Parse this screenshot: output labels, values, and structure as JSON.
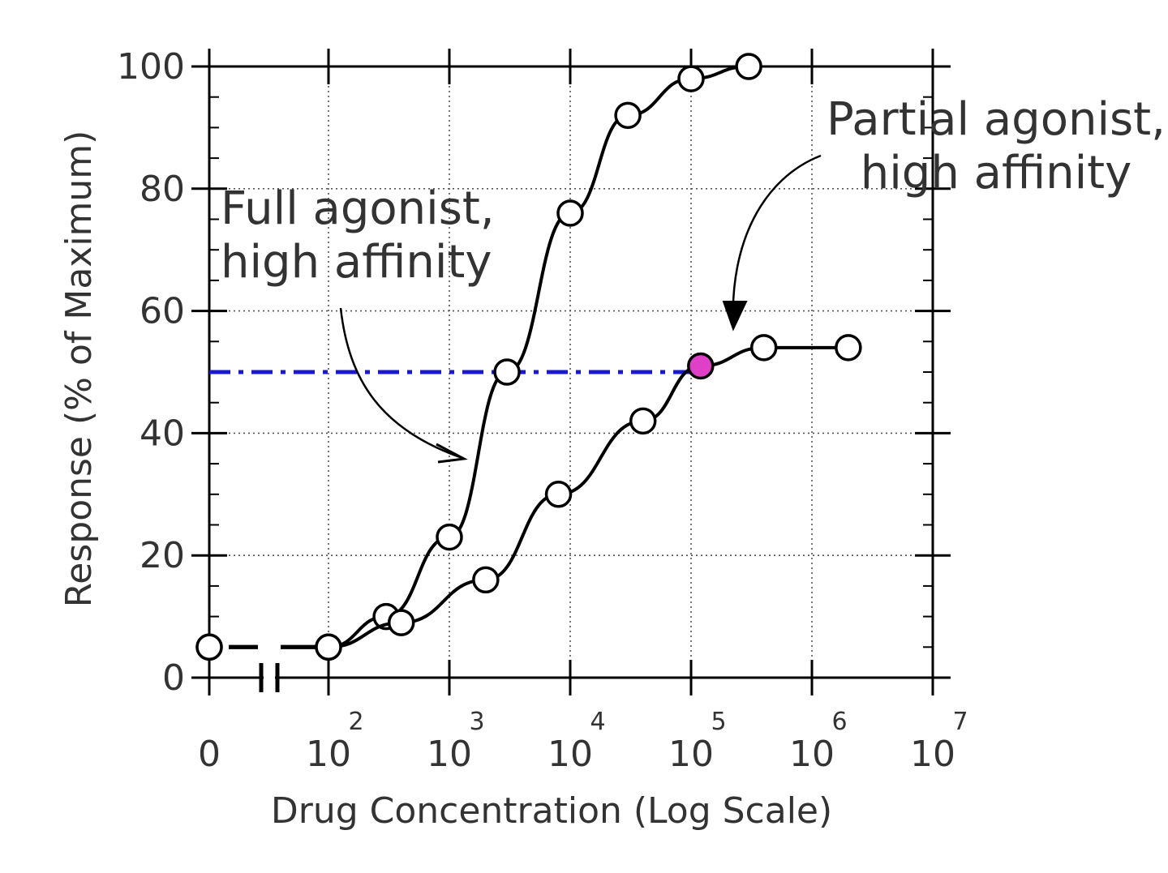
{
  "chart_data": {
    "type": "line",
    "xlabel": "Drug Concentration (Log Scale)",
    "ylabel": "Response (% of Maximum)",
    "xscale": "log",
    "x_tick_labels": [
      {
        "text": "0",
        "sup": ""
      },
      {
        "text": "10",
        "sup": "2"
      },
      {
        "text": "10",
        "sup": "3"
      },
      {
        "text": "10",
        "sup": "4"
      },
      {
        "text": "10",
        "sup": "5"
      },
      {
        "text": "10",
        "sup": "6"
      },
      {
        "text": "10",
        "sup": "7"
      }
    ],
    "y_tick_labels": [
      "0",
      "20",
      "40",
      "60",
      "80",
      "100"
    ],
    "xlim": [
      100,
      10000000
    ],
    "ylim": [
      0,
      100
    ],
    "axis_break": true,
    "grid": "dotted",
    "series": [
      {
        "name": "Full agonist, high affinity",
        "x": [
          0,
          100,
          300,
          1000,
          3000,
          10000,
          30000,
          100000,
          300000
        ],
        "y": [
          5,
          5,
          10,
          23,
          50,
          76,
          92,
          98,
          100
        ]
      },
      {
        "name": "Partial agonist, high affinity",
        "x": [
          0,
          100,
          400,
          2000,
          8000,
          40000,
          120000,
          400000,
          2000000
        ],
        "y": [
          5,
          5,
          9,
          16,
          30,
          42,
          51,
          54,
          54
        ]
      }
    ],
    "reference_line": {
      "y": 50,
      "x_end": 150000,
      "style": "dash-dot",
      "color": "#1a1acc"
    },
    "highlight_point": {
      "x": 120000,
      "y": 51,
      "color": "#e040c8"
    },
    "annotations": [
      {
        "lines": [
          "Full agonist,",
          "high affinity"
        ]
      },
      {
        "lines": [
          "Partial agonist,",
          "high affinity"
        ]
      }
    ],
    "colors": {
      "line": "#000000",
      "grid": "#555555",
      "marker_fill": "#ffffff"
    }
  }
}
